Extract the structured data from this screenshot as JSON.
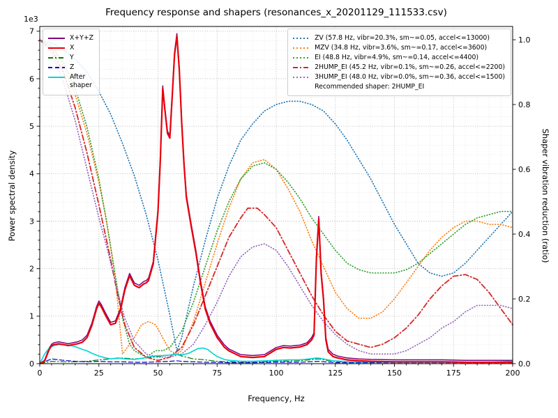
{
  "chart_data": {
    "type": "line",
    "title": "Frequency response and shapers (resonances_x_20201129_111533.csv)",
    "xlabel": "Frequency, Hz",
    "ylabel": "Power spectral density",
    "ylabel2": "Shaper vibration reduction (ratio)",
    "offset_text": "1e3",
    "y_left_units": "1e3",
    "xlim": [
      0,
      200
    ],
    "ylim_left": [
      0,
      7.1
    ],
    "ylim_right": [
      0,
      1.041
    ],
    "x_ticks": [
      0,
      25,
      50,
      75,
      100,
      125,
      150,
      175,
      200
    ],
    "x_minor_step": 5,
    "y_left_ticks": [
      0,
      1,
      2,
      3,
      4,
      5,
      6,
      7
    ],
    "y_left_minor_step": 0.2,
    "y_right_ticks": [
      "0.0",
      "0.2",
      "0.4",
      "0.6",
      "0.8",
      "1.0"
    ],
    "grid": "both",
    "legend_left_position": "upper left",
    "legend_right_position": "upper right",
    "recommended_note": "Recommended shaper: 2HUMP_EI",
    "series": [
      {
        "name": "X+Y+Z",
        "legend": "X+Y+Z",
        "axis": "left",
        "color": "#7f007f",
        "style": "solid",
        "width": 1.5,
        "x": [
          0,
          2,
          4,
          5,
          6,
          8,
          10,
          12,
          14,
          16,
          18,
          20,
          22,
          24,
          25,
          26,
          28,
          30,
          32,
          34,
          36,
          38,
          40,
          42,
          44,
          45,
          46,
          48,
          50,
          51,
          52,
          53,
          54,
          55,
          56,
          57,
          58,
          59,
          60,
          61,
          62,
          64,
          66,
          68,
          70,
          72,
          75,
          78,
          80,
          85,
          90,
          95,
          100,
          103,
          106,
          110,
          113,
          115,
          116,
          117,
          118,
          119,
          120,
          121,
          122,
          124,
          126,
          130,
          135,
          140,
          150,
          160,
          170,
          180,
          190,
          200
        ],
        "y": [
          0,
          0.07,
          0.33,
          0.41,
          0.44,
          0.46,
          0.44,
          0.42,
          0.44,
          0.46,
          0.5,
          0.6,
          0.85,
          1.2,
          1.32,
          1.25,
          1.05,
          0.87,
          0.9,
          1.15,
          1.6,
          1.9,
          1.7,
          1.65,
          1.73,
          1.75,
          1.8,
          2.15,
          3.25,
          4.35,
          5.85,
          5.35,
          4.9,
          4.8,
          5.65,
          6.55,
          6.95,
          6.25,
          5.15,
          4.25,
          3.55,
          2.95,
          2.4,
          1.75,
          1.2,
          0.9,
          0.6,
          0.4,
          0.31,
          0.19,
          0.17,
          0.19,
          0.34,
          0.38,
          0.37,
          0.39,
          0.44,
          0.55,
          0.65,
          2.25,
          3.1,
          1.95,
          1.4,
          0.55,
          0.3,
          0.2,
          0.16,
          0.12,
          0.1,
          0.09,
          0.08,
          0.08,
          0.08,
          0.07,
          0.07,
          0.07
        ]
      },
      {
        "name": "X",
        "legend": "X",
        "axis": "left",
        "color": "#e8000b",
        "style": "solid",
        "width": 2.2,
        "x": [
          0,
          2,
          4,
          5,
          6,
          8,
          10,
          12,
          14,
          16,
          18,
          20,
          22,
          24,
          25,
          26,
          28,
          30,
          32,
          34,
          36,
          38,
          40,
          42,
          44,
          45,
          46,
          48,
          50,
          51,
          52,
          53,
          54,
          55,
          56,
          57,
          58,
          59,
          60,
          61,
          62,
          64,
          66,
          68,
          70,
          72,
          75,
          78,
          80,
          85,
          90,
          95,
          100,
          103,
          106,
          110,
          113,
          115,
          116,
          117,
          118,
          119,
          120,
          121,
          122,
          124,
          126,
          130,
          135,
          140,
          150,
          160,
          170,
          180,
          190,
          200
        ],
        "y": [
          0,
          0.05,
          0.3,
          0.38,
          0.4,
          0.42,
          0.4,
          0.38,
          0.4,
          0.42,
          0.45,
          0.55,
          0.8,
          1.15,
          1.27,
          1.2,
          1.0,
          0.82,
          0.85,
          1.1,
          1.55,
          1.85,
          1.65,
          1.6,
          1.68,
          1.7,
          1.75,
          2.1,
          3.2,
          4.3,
          5.8,
          5.3,
          4.85,
          4.75,
          5.6,
          6.5,
          6.9,
          6.2,
          5.1,
          4.2,
          3.5,
          2.9,
          2.35,
          1.7,
          1.15,
          0.85,
          0.55,
          0.35,
          0.27,
          0.15,
          0.13,
          0.15,
          0.3,
          0.34,
          0.33,
          0.35,
          0.4,
          0.5,
          0.6,
          2.2,
          3.05,
          1.9,
          1.35,
          0.5,
          0.25,
          0.15,
          0.12,
          0.08,
          0.06,
          0.05,
          0.04,
          0.04,
          0.04,
          0.03,
          0.03,
          0.03
        ]
      },
      {
        "name": "Y",
        "legend": "Y",
        "axis": "left",
        "color": "#007f00",
        "style": "dashdot",
        "width": 1.2,
        "x": [
          0,
          5,
          10,
          15,
          20,
          25,
          30,
          35,
          40,
          45,
          50,
          55,
          58,
          60,
          65,
          70,
          75,
          80,
          90,
          100,
          110,
          118,
          125,
          140,
          160,
          180,
          200
        ],
        "y": [
          0,
          0.05,
          0.04,
          0.04,
          0.05,
          0.08,
          0.1,
          0.12,
          0.1,
          0.12,
          0.15,
          0.18,
          0.2,
          0.16,
          0.1,
          0.08,
          0.05,
          0.04,
          0.03,
          0.05,
          0.06,
          0.1,
          0.04,
          0.03,
          0.03,
          0.03,
          0.03
        ]
      },
      {
        "name": "Z",
        "legend": "Z",
        "axis": "left",
        "color": "#0000cd",
        "style": "dashed",
        "width": 1.2,
        "x": [
          0,
          5,
          10,
          15,
          20,
          25,
          30,
          35,
          40,
          45,
          50,
          55,
          58,
          60,
          65,
          70,
          75,
          80,
          90,
          100,
          110,
          118,
          125,
          140,
          160,
          180,
          200
        ],
        "y": [
          0,
          0.1,
          0.07,
          0.05,
          0.04,
          0.05,
          0.04,
          0.04,
          0.03,
          0.03,
          0.04,
          0.05,
          0.06,
          0.05,
          0.04,
          0.03,
          0.03,
          0.02,
          0.02,
          0.03,
          0.03,
          0.05,
          0.02,
          0.02,
          0.02,
          0.02,
          0.02
        ]
      },
      {
        "name": "After shaper",
        "legend": "After\nshaper",
        "axis": "left",
        "color": "#00d5d5",
        "style": "solid",
        "width": 1.6,
        "x": [
          0,
          2,
          4,
          6,
          8,
          10,
          12,
          15,
          18,
          20,
          22,
          25,
          28,
          30,
          33,
          36,
          40,
          44,
          48,
          52,
          55,
          58,
          60,
          63,
          65,
          67,
          69,
          71,
          73,
          75,
          78,
          80,
          85,
          90,
          95,
          100,
          105,
          110,
          114,
          117,
          119,
          121,
          124,
          128,
          132,
          140,
          150,
          160,
          170,
          180,
          190,
          195,
          200
        ],
        "y": [
          0,
          0.2,
          0.33,
          0.38,
          0.4,
          0.4,
          0.39,
          0.36,
          0.3,
          0.27,
          0.22,
          0.16,
          0.12,
          0.1,
          0.12,
          0.1,
          0.09,
          0.12,
          0.16,
          0.17,
          0.18,
          0.2,
          0.18,
          0.22,
          0.27,
          0.32,
          0.33,
          0.3,
          0.22,
          0.15,
          0.09,
          0.07,
          0.05,
          0.05,
          0.06,
          0.07,
          0.08,
          0.08,
          0.1,
          0.12,
          0.11,
          0.09,
          0.06,
          0.05,
          0.04,
          0.04,
          0.03,
          0.03,
          0.03,
          0.03,
          0.03,
          0.04,
          0.05
        ]
      },
      {
        "name": "ZV",
        "legend": "ZV (57.8 Hz, vibr=20.3%, sm~=0.05, accel<=13000)",
        "axis": "right",
        "color": "#1f77b4",
        "style": "dotted",
        "width": 1.7,
        "x": [
          0,
          5,
          10,
          15,
          20,
          25,
          30,
          35,
          40,
          45,
          50,
          55,
          58,
          60,
          65,
          70,
          75,
          80,
          85,
          90,
          95,
          100,
          105,
          110,
          115,
          120,
          125,
          130,
          135,
          140,
          145,
          150,
          155,
          160,
          165,
          170,
          175,
          180,
          185,
          190,
          195,
          200
        ],
        "y": [
          1.0,
          0.99,
          0.97,
          0.94,
          0.9,
          0.84,
          0.77,
          0.68,
          0.58,
          0.46,
          0.32,
          0.15,
          0.04,
          0.08,
          0.24,
          0.38,
          0.51,
          0.61,
          0.69,
          0.74,
          0.78,
          0.8,
          0.81,
          0.81,
          0.8,
          0.78,
          0.74,
          0.69,
          0.63,
          0.57,
          0.5,
          0.43,
          0.37,
          0.31,
          0.28,
          0.27,
          0.28,
          0.31,
          0.35,
          0.39,
          0.43,
          0.47
        ]
      },
      {
        "name": "MZV",
        "legend": "MZV (34.8 Hz, vibr=3.6%, sm~=0.17, accel<=3600)",
        "axis": "right",
        "color": "#ff7f0e",
        "style": "dotted",
        "width": 1.7,
        "x": [
          0,
          5,
          10,
          15,
          20,
          25,
          28,
          30,
          32,
          35,
          38,
          40,
          43,
          46,
          49,
          52,
          55,
          58,
          60,
          65,
          70,
          75,
          80,
          85,
          90,
          95,
          100,
          105,
          110,
          115,
          120,
          125,
          130,
          135,
          140,
          145,
          150,
          155,
          160,
          165,
          170,
          175,
          180,
          185,
          190,
          195,
          200
        ],
        "y": [
          1.0,
          0.98,
          0.92,
          0.83,
          0.71,
          0.56,
          0.45,
          0.36,
          0.26,
          0.03,
          0.06,
          0.08,
          0.12,
          0.13,
          0.12,
          0.08,
          0.04,
          0.03,
          0.04,
          0.13,
          0.25,
          0.37,
          0.48,
          0.57,
          0.62,
          0.63,
          0.6,
          0.54,
          0.47,
          0.38,
          0.3,
          0.22,
          0.17,
          0.14,
          0.14,
          0.16,
          0.2,
          0.25,
          0.3,
          0.35,
          0.39,
          0.42,
          0.44,
          0.44,
          0.43,
          0.43,
          0.42
        ]
      },
      {
        "name": "EI",
        "legend": "EI (48.8 Hz, vibr=4.9%, sm~=0.14, accel<=4400)",
        "axis": "right",
        "color": "#2ca02c",
        "style": "dotted",
        "width": 1.7,
        "x": [
          0,
          5,
          10,
          15,
          20,
          25,
          28,
          30,
          32,
          35,
          38,
          40,
          45,
          49,
          52,
          55,
          58,
          60,
          65,
          70,
          75,
          80,
          85,
          90,
          95,
          100,
          105,
          110,
          115,
          120,
          125,
          130,
          135,
          140,
          145,
          150,
          155,
          160,
          165,
          170,
          175,
          180,
          185,
          190,
          195,
          200
        ],
        "y": [
          1.0,
          0.98,
          0.93,
          0.85,
          0.73,
          0.57,
          0.45,
          0.36,
          0.27,
          0.14,
          0.06,
          0.04,
          0.02,
          0.04,
          0.04,
          0.05,
          0.08,
          0.1,
          0.19,
          0.3,
          0.41,
          0.5,
          0.57,
          0.61,
          0.62,
          0.6,
          0.56,
          0.51,
          0.45,
          0.4,
          0.35,
          0.31,
          0.29,
          0.28,
          0.28,
          0.28,
          0.29,
          0.31,
          0.34,
          0.37,
          0.4,
          0.43,
          0.45,
          0.46,
          0.47,
          0.47
        ]
      },
      {
        "name": "2HUMP_EI",
        "legend": "2HUMP_EI (45.2 Hz, vibr=0.1%, sm~=0.26, accel<=2200)",
        "axis": "right",
        "color": "#d62728",
        "style": "dashdot",
        "width": 1.8,
        "x": [
          0,
          5,
          10,
          15,
          20,
          25,
          28,
          30,
          33,
          36,
          40,
          45,
          50,
          55,
          60,
          65,
          70,
          75,
          80,
          85,
          88,
          92,
          95,
          100,
          105,
          110,
          115,
          120,
          125,
          130,
          135,
          140,
          145,
          150,
          155,
          160,
          165,
          170,
          175,
          180,
          185,
          190,
          195,
          200
        ],
        "y": [
          1.0,
          0.97,
          0.9,
          0.79,
          0.65,
          0.49,
          0.39,
          0.32,
          0.21,
          0.12,
          0.05,
          0.02,
          0.01,
          0.02,
          0.05,
          0.12,
          0.21,
          0.3,
          0.39,
          0.45,
          0.48,
          0.48,
          0.46,
          0.42,
          0.35,
          0.28,
          0.21,
          0.15,
          0.1,
          0.07,
          0.06,
          0.05,
          0.06,
          0.08,
          0.11,
          0.15,
          0.2,
          0.24,
          0.27,
          0.275,
          0.26,
          0.22,
          0.17,
          0.12
        ]
      },
      {
        "name": "3HUMP_EI",
        "legend": "3HUMP_EI (48.0 Hz, vibr=0.0%, sm~=0.36, accel<=1500)",
        "axis": "right",
        "color": "#9467bd",
        "style": "dotted",
        "width": 1.7,
        "x": [
          0,
          5,
          10,
          15,
          20,
          25,
          28,
          30,
          33,
          36,
          40,
          45,
          50,
          55,
          60,
          65,
          70,
          75,
          80,
          85,
          90,
          95,
          100,
          105,
          110,
          115,
          120,
          125,
          130,
          135,
          140,
          145,
          150,
          155,
          160,
          165,
          170,
          175,
          180,
          185,
          190,
          195,
          200
        ],
        "y": [
          1.0,
          0.96,
          0.87,
          0.75,
          0.6,
          0.45,
          0.37,
          0.31,
          0.22,
          0.14,
          0.07,
          0.03,
          0.02,
          0.02,
          0.03,
          0.06,
          0.12,
          0.19,
          0.27,
          0.33,
          0.36,
          0.37,
          0.35,
          0.3,
          0.24,
          0.18,
          0.13,
          0.09,
          0.06,
          0.04,
          0.03,
          0.03,
          0.03,
          0.04,
          0.06,
          0.08,
          0.11,
          0.13,
          0.16,
          0.18,
          0.18,
          0.18,
          0.17
        ]
      }
    ]
  }
}
